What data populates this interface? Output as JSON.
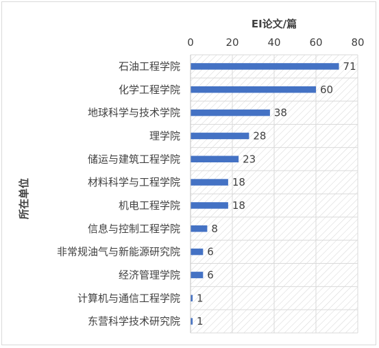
{
  "chart_data": {
    "type": "bar",
    "orientation": "horizontal",
    "title": "EI论文/篇",
    "xlabel": "EI论文/篇",
    "ylabel": "所在单位",
    "xlim": [
      0,
      80
    ],
    "x_ticks": [
      0,
      20,
      40,
      60,
      80
    ],
    "x_axis_position": "top",
    "grid": true,
    "plot_background": "hatched",
    "bar_color": "#4472C4",
    "categories": [
      "石油工程学院",
      "化学工程学院",
      "地球科学与技术学院",
      "理学院",
      "储运与建筑工程学院",
      "材料科学与工程学院",
      "机电工程学院",
      "信息与控制工程学院",
      "非常规油气与新能源研究院",
      "经济管理学院",
      "计算机与通信工程学院",
      "东营科学技术研究院"
    ],
    "values": [
      71,
      60,
      38,
      28,
      23,
      18,
      18,
      8,
      6,
      6,
      1,
      1
    ]
  }
}
